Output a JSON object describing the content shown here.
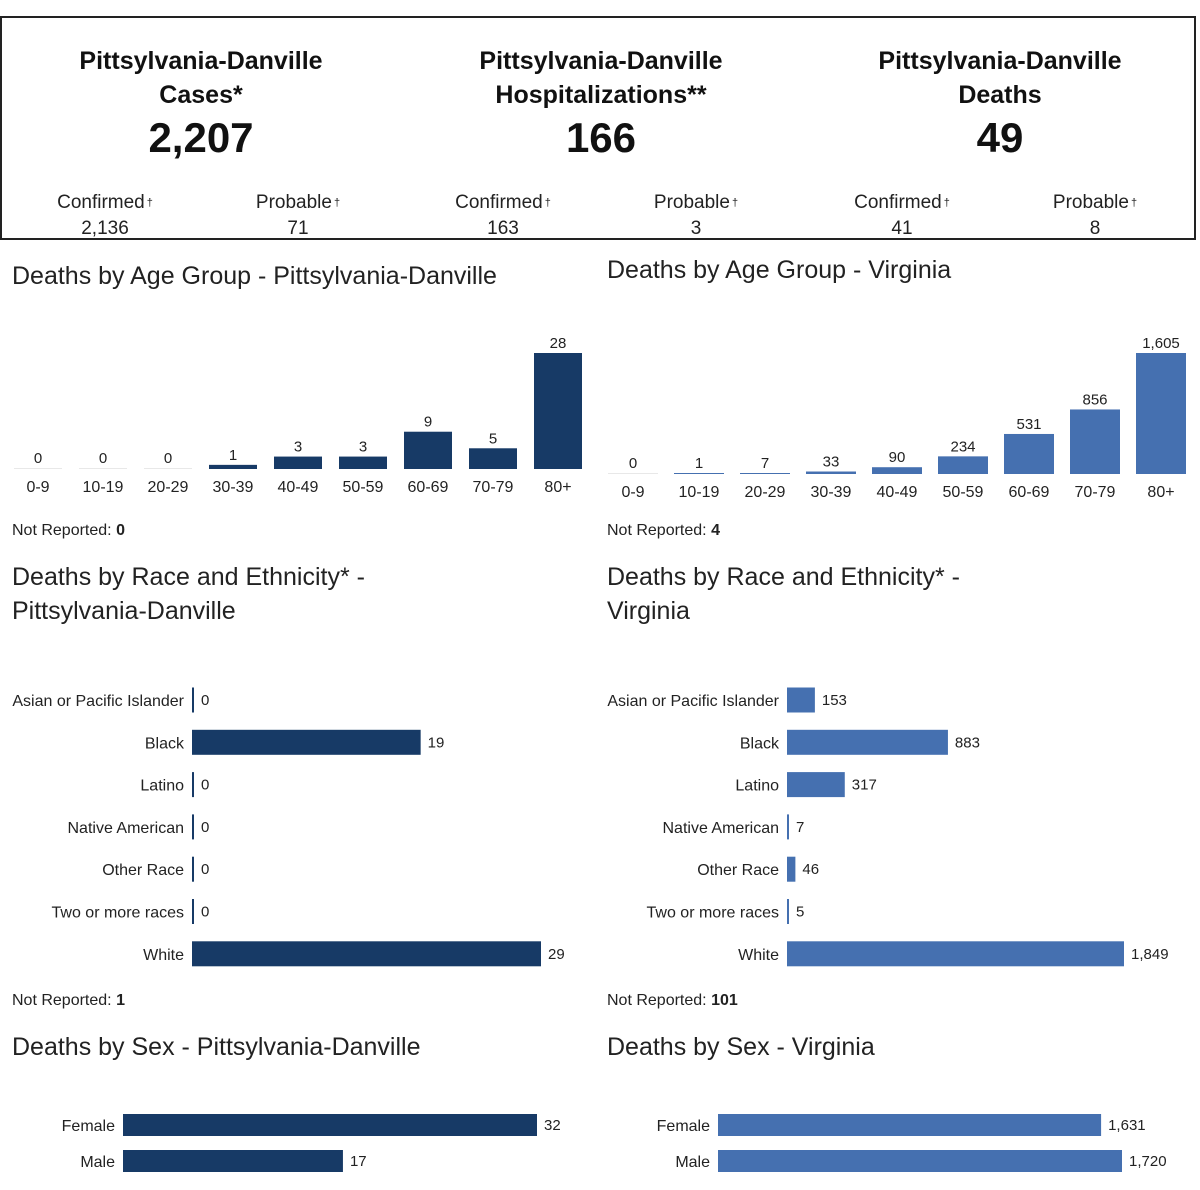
{
  "summary": [
    {
      "label": "Pittsylvania-Danville\nCases*",
      "total": "2,207",
      "sub": [
        {
          "label": "Confirmed",
          "value": "2,136"
        },
        {
          "label": "Probable",
          "value": "71"
        }
      ]
    },
    {
      "label": "Pittsylvania-Danville\nHospitalizations**",
      "total": "166",
      "sub": [
        {
          "label": "Confirmed",
          "value": "163"
        },
        {
          "label": "Probable",
          "value": "3"
        }
      ]
    },
    {
      "label": "Pittsylvania-Danville\nDeaths",
      "total": "49",
      "sub": [
        {
          "label": "Confirmed",
          "value": "41"
        },
        {
          "label": "Probable",
          "value": "8"
        }
      ]
    }
  ],
  "dagger": "†",
  "not_reported_label": "Not Reported:",
  "colors": {
    "pd": "#173a66",
    "va": "#4570b0"
  },
  "chart_data": [
    {
      "id": "age-pd",
      "type": "bar",
      "title": "Deaths by Age Group - Pittsylvania-Danville",
      "categories": [
        "0-9",
        "10-19",
        "20-29",
        "30-39",
        "40-49",
        "50-59",
        "60-69",
        "70-79",
        "80+"
      ],
      "values": [
        0,
        0,
        0,
        1,
        3,
        3,
        9,
        5,
        28
      ],
      "value_labels": [
        "0",
        "0",
        "0",
        "1",
        "3",
        "3",
        "9",
        "5",
        "28"
      ],
      "not_reported": "0"
    },
    {
      "id": "age-va",
      "type": "bar",
      "title": "Deaths by Age Group - Virginia",
      "categories": [
        "0-9",
        "10-19",
        "20-29",
        "30-39",
        "40-49",
        "50-59",
        "60-69",
        "70-79",
        "80+"
      ],
      "values": [
        0,
        1,
        7,
        33,
        90,
        234,
        531,
        856,
        1605
      ],
      "value_labels": [
        "0",
        "1",
        "7",
        "33",
        "90",
        "234",
        "531",
        "856",
        "1,605"
      ],
      "not_reported": "4"
    },
    {
      "id": "race-pd",
      "type": "bar",
      "orientation": "horizontal",
      "title": "Deaths by Race and Ethnicity* -\nPittsylvania-Danville",
      "categories": [
        "Asian or Pacific Islander",
        "Black",
        "Latino",
        "Native American",
        "Other Race",
        "Two or more races",
        "White"
      ],
      "values": [
        0,
        19,
        0,
        0,
        0,
        0,
        29
      ],
      "value_labels": [
        "0",
        "19",
        "0",
        "0",
        "0",
        "0",
        "29"
      ],
      "not_reported": "1"
    },
    {
      "id": "race-va",
      "type": "bar",
      "orientation": "horizontal",
      "title": "Deaths by Race and Ethnicity* -\nVirginia",
      "categories": [
        "Asian or Pacific Islander",
        "Black",
        "Latino",
        "Native American",
        "Other Race",
        "Two or more races",
        "White"
      ],
      "values": [
        153,
        883,
        317,
        7,
        46,
        5,
        1849
      ],
      "value_labels": [
        "153",
        "883",
        "317",
        "7",
        "46",
        "5",
        "1,849"
      ],
      "not_reported": "101"
    },
    {
      "id": "sex-pd",
      "type": "bar",
      "orientation": "horizontal",
      "title": "Deaths by Sex - Pittsylvania-Danville",
      "categories": [
        "Female",
        "Male"
      ],
      "values": [
        32,
        17
      ],
      "value_labels": [
        "32",
        "17"
      ]
    },
    {
      "id": "sex-va",
      "type": "bar",
      "orientation": "horizontal",
      "title": "Deaths by Sex - Virginia",
      "categories": [
        "Female",
        "Male"
      ],
      "values": [
        1631,
        1720
      ],
      "value_labels": [
        "1,631",
        "1,720"
      ]
    }
  ]
}
